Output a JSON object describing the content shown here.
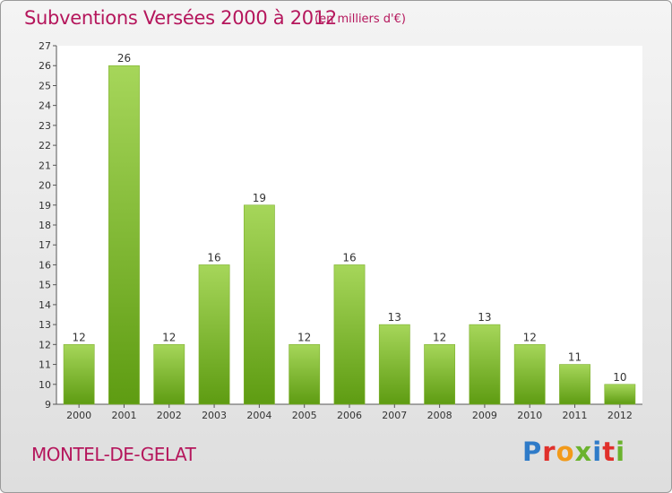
{
  "header": {
    "title": "Subventions Versées 2000 à 2012",
    "subtitle": "(en milliers d'€)"
  },
  "footer": {
    "commune": "MONTEL-DE-GELAT",
    "logo_text": "Proxiti",
    "logo_colors": [
      "#2f7bc8",
      "#e0302b",
      "#f29a1a",
      "#6bb32e",
      "#2f7bc8",
      "#e0302b",
      "#6bb32e"
    ]
  },
  "colors": {
    "title": "#b5165c",
    "bar_top": "#a6d65a",
    "bar_bottom": "#5e9c12",
    "grid": "#cfcfcf"
  },
  "chart_data": {
    "type": "bar",
    "title": "Subventions Versées 2000 à 2012",
    "subtitle": "(en milliers d'€)",
    "xlabel": "",
    "ylabel": "",
    "categories": [
      "2000",
      "2001",
      "2002",
      "2003",
      "2004",
      "2005",
      "2006",
      "2007",
      "2008",
      "2009",
      "2010",
      "2011",
      "2012"
    ],
    "values": [
      12,
      26,
      12,
      16,
      19,
      12,
      16,
      13,
      12,
      13,
      12,
      11,
      10
    ],
    "ylim": [
      9,
      27
    ],
    "yticks": [
      9,
      10,
      11,
      12,
      13,
      14,
      15,
      16,
      17,
      18,
      19,
      20,
      21,
      22,
      23,
      24,
      25,
      26,
      27
    ],
    "grid": false,
    "legend": "none"
  }
}
